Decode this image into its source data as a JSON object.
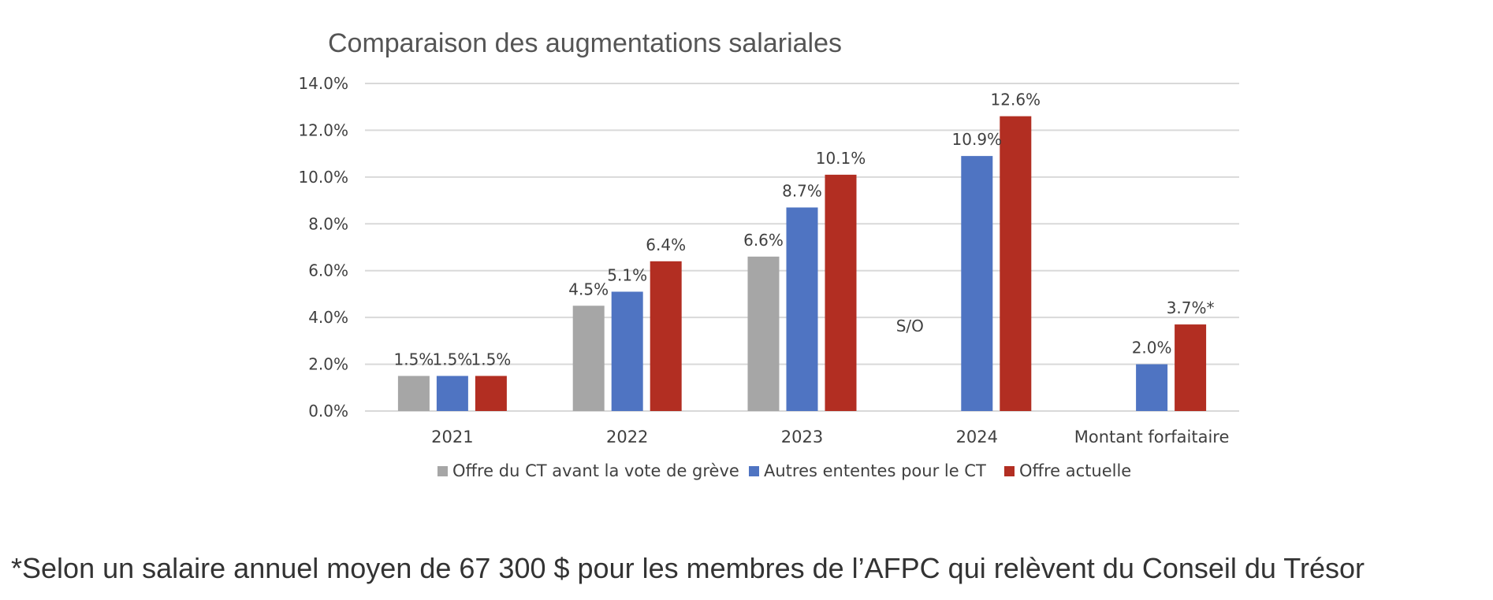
{
  "chart_data": {
    "type": "bar",
    "title": "Comparaison des augmentations salariales",
    "xlabel": "",
    "ylabel": "",
    "categories": [
      "2021",
      "2022",
      "2023",
      "2024",
      "Montant forfaitaire"
    ],
    "series": [
      {
        "name": "Offre du CT avant la vote de grève",
        "color": "#a6a6a6",
        "values": [
          1.5,
          4.5,
          6.6,
          null,
          null
        ],
        "labels": [
          "1.5%",
          "4.5%",
          "6.6%",
          "S/O",
          ""
        ]
      },
      {
        "name": "Autres ententes pour le CT",
        "color": "#4f74c2",
        "values": [
          1.5,
          5.1,
          8.7,
          10.9,
          2.0
        ],
        "labels": [
          "1.5%",
          "5.1%",
          "8.7%",
          "10.9%",
          "2.0%"
        ]
      },
      {
        "name": "Offre actuelle",
        "color": "#b22e22",
        "values": [
          1.5,
          6.4,
          10.1,
          12.6,
          3.7
        ],
        "labels": [
          "1.5%",
          "6.4%",
          "10.1%",
          "12.6%",
          "3.7%*"
        ]
      }
    ],
    "ylim": [
      0,
      14
    ],
    "yticks": [
      "0.0%",
      "2.0%",
      "4.0%",
      "6.0%",
      "8.0%",
      "10.0%",
      "12.0%",
      "14.0%"
    ],
    "grid": true,
    "legend_position": "bottom"
  },
  "footnote": "*Selon un salaire annuel moyen de 67 300 $ pour les membres de l’AFPC qui relèvent du Conseil du Trésor"
}
